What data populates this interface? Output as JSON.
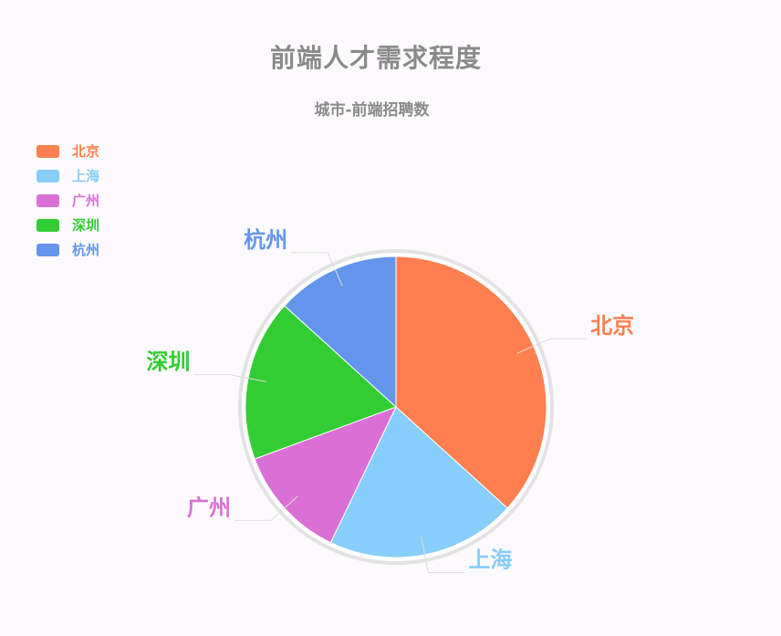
{
  "title": "前端人才需求程度",
  "subtitle": "城市-前端招聘数",
  "chart_data": {
    "type": "pie",
    "title": "前端人才需求程度",
    "subtitle": "城市-前端招聘数",
    "legend_position": "top-left",
    "slices": [
      {
        "name": "北京",
        "value": 36,
        "color": "#ff7f50"
      },
      {
        "name": "上海",
        "value": 20,
        "color": "#87cefa"
      },
      {
        "name": "广州",
        "value": 12,
        "color": "#da70d6"
      },
      {
        "name": "深圳",
        "value": 17,
        "color": "#32cd32"
      },
      {
        "name": "杭州",
        "value": 13,
        "color": "#6495ed"
      }
    ]
  }
}
